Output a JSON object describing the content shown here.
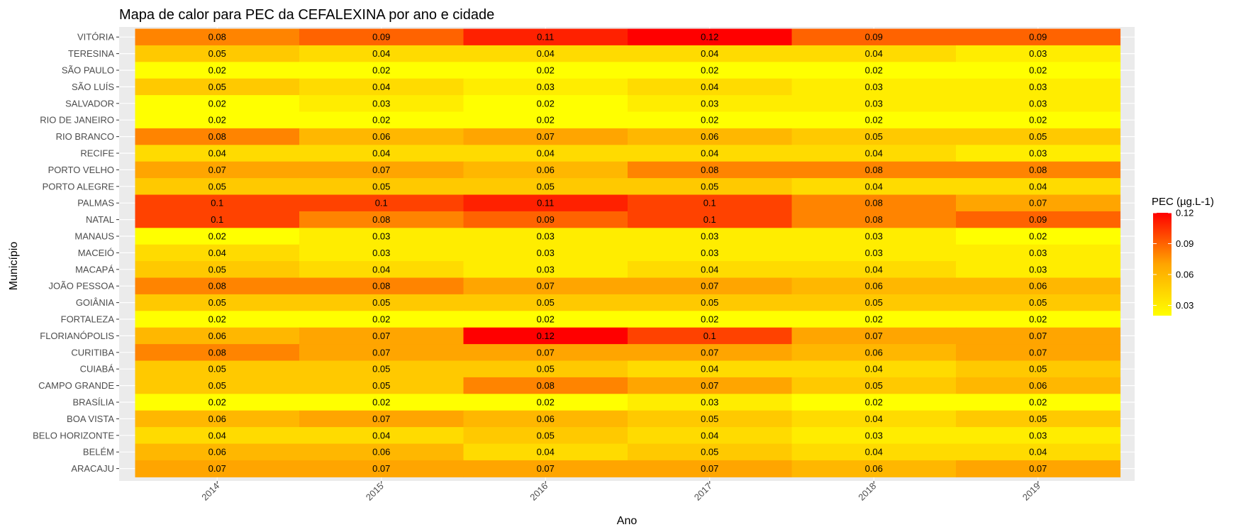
{
  "chart_data": {
    "type": "heatmap",
    "title": "Mapa de calor para PEC da CEFALEXINA por ano e cidade",
    "xlabel": "Ano",
    "ylabel": "Município",
    "x": [
      "2014",
      "2015",
      "2016",
      "2017",
      "2018",
      "2019"
    ],
    "y": [
      "VITÓRIA",
      "TERESINA",
      "SÃO PAULO",
      "SÃO LUÍS",
      "SALVADOR",
      "RIO DE JANEIRO",
      "RIO BRANCO",
      "RECIFE",
      "PORTO VELHO",
      "PORTO ALEGRE",
      "PALMAS",
      "NATAL",
      "MANAUS",
      "MACEIÓ",
      "MACAPÁ",
      "JOÃO PESSOA",
      "GOIÂNIA",
      "FORTALEZA",
      "FLORIANÓPOLIS",
      "CURITIBA",
      "CUIABÁ",
      "CAMPO GRANDE",
      "BRASÍLIA",
      "BOA VISTA",
      "BELO HORIZONTE",
      "BELÉM",
      "ARACAJU"
    ],
    "values": [
      [
        0.08,
        0.09,
        0.11,
        0.12,
        0.09,
        0.09
      ],
      [
        0.05,
        0.04,
        0.04,
        0.04,
        0.04,
        0.03
      ],
      [
        0.02,
        0.02,
        0.02,
        0.02,
        0.02,
        0.02
      ],
      [
        0.05,
        0.04,
        0.03,
        0.04,
        0.03,
        0.03
      ],
      [
        0.02,
        0.03,
        0.02,
        0.03,
        0.03,
        0.03
      ],
      [
        0.02,
        0.02,
        0.02,
        0.02,
        0.02,
        0.02
      ],
      [
        0.08,
        0.06,
        0.07,
        0.06,
        0.05,
        0.05
      ],
      [
        0.04,
        0.04,
        0.04,
        0.04,
        0.04,
        0.03
      ],
      [
        0.07,
        0.07,
        0.06,
        0.08,
        0.08,
        0.08
      ],
      [
        0.05,
        0.05,
        0.05,
        0.05,
        0.04,
        0.04
      ],
      [
        0.1,
        0.1,
        0.11,
        0.1,
        0.08,
        0.07
      ],
      [
        0.1,
        0.08,
        0.09,
        0.1,
        0.08,
        0.09
      ],
      [
        0.02,
        0.03,
        0.03,
        0.03,
        0.03,
        0.02
      ],
      [
        0.04,
        0.03,
        0.03,
        0.03,
        0.03,
        0.03
      ],
      [
        0.05,
        0.04,
        0.03,
        0.04,
        0.04,
        0.03
      ],
      [
        0.08,
        0.08,
        0.07,
        0.07,
        0.06,
        0.06
      ],
      [
        0.05,
        0.05,
        0.05,
        0.05,
        0.05,
        0.05
      ],
      [
        0.02,
        0.02,
        0.02,
        0.02,
        0.02,
        0.02
      ],
      [
        0.06,
        0.07,
        0.12,
        0.1,
        0.07,
        0.07
      ],
      [
        0.08,
        0.07,
        0.07,
        0.07,
        0.06,
        0.07
      ],
      [
        0.05,
        0.05,
        0.05,
        0.04,
        0.04,
        0.05
      ],
      [
        0.05,
        0.05,
        0.08,
        0.07,
        0.05,
        0.06
      ],
      [
        0.02,
        0.02,
        0.02,
        0.03,
        0.02,
        0.02
      ],
      [
        0.06,
        0.07,
        0.06,
        0.05,
        0.04,
        0.05
      ],
      [
        0.04,
        0.04,
        0.05,
        0.04,
        0.03,
        0.03
      ],
      [
        0.06,
        0.06,
        0.04,
        0.05,
        0.04,
        0.04
      ],
      [
        0.07,
        0.07,
        0.07,
        0.07,
        0.06,
        0.07
      ]
    ],
    "color_scale": {
      "low": "#ffff00",
      "mid": "#ffa500",
      "high": "#ff0000",
      "domain": [
        0.02,
        0.12
      ]
    },
    "legend": {
      "title": "PEC (µg.L-1)",
      "ticks": [
        "0.03",
        "0.06",
        "0.09",
        "0.12"
      ],
      "position": "right"
    },
    "panel_background": "#ebebeb",
    "grid": true
  }
}
